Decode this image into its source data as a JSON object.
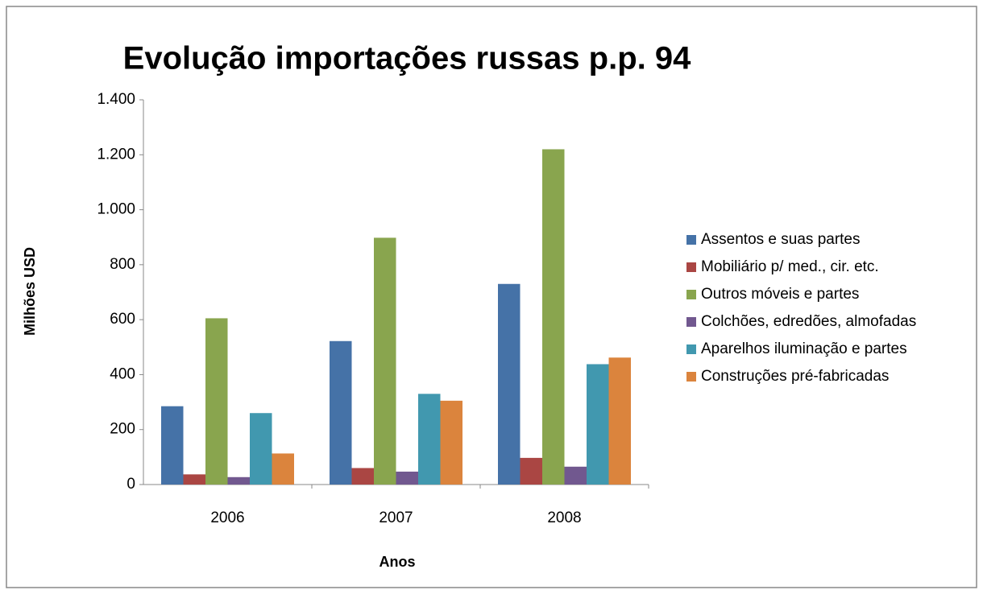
{
  "chart_data": {
    "type": "bar",
    "title": "Evolução importações russas p.p. 94",
    "x_label": "Anos",
    "y_label": "Milhões USD",
    "categories": [
      "2006",
      "2007",
      "2008"
    ],
    "series": [
      {
        "name": "Assentos e suas partes",
        "color": "#4572a7",
        "values": [
          285,
          522,
          730
        ]
      },
      {
        "name": "Mobiliário p/ med., cir. etc.",
        "color": "#aa4643",
        "values": [
          37,
          60,
          97
        ]
      },
      {
        "name": "Outros móveis e partes",
        "color": "#89a54e",
        "values": [
          605,
          898,
          1220
        ]
      },
      {
        "name": "Colchões, edredões, almofadas",
        "color": "#71588f",
        "values": [
          27,
          47,
          65
        ]
      },
      {
        "name": "Aparelhos iluminação e partes",
        "color": "#4198af",
        "values": [
          260,
          330,
          438
        ]
      },
      {
        "name": "Construções pré-fabricadas",
        "color": "#db843d",
        "values": [
          113,
          305,
          462
        ]
      }
    ],
    "ylim": [
      0,
      1400
    ],
    "yticks": [
      0,
      200,
      400,
      600,
      800,
      {
        "value": 1000,
        "label": "1.000"
      },
      {
        "value": 1200,
        "label": "1.200"
      },
      {
        "value": 1400,
        "label": "1.400"
      }
    ],
    "grid": false,
    "legend": "right"
  }
}
